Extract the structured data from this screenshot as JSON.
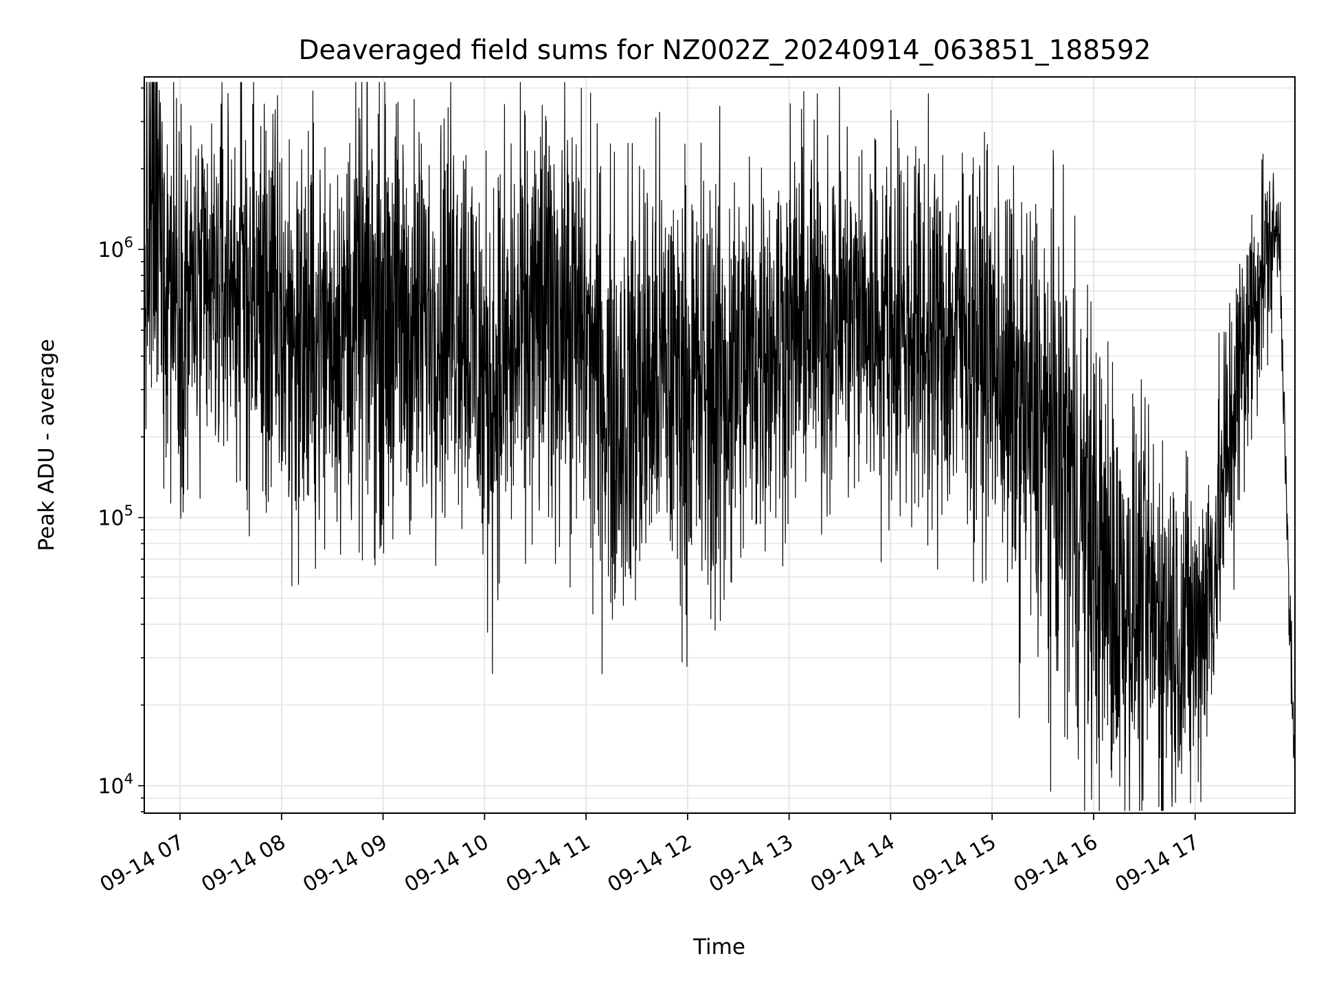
{
  "chart_data": {
    "type": "line",
    "title": "Deaveraged field sums for NZ002Z_20240914_063851_188592",
    "xlabel": "Time",
    "ylabel": "Peak ADU - average",
    "y_scale": "log",
    "ylim": [
      7900,
      4400000
    ],
    "xlim": [
      "2024-09-14 06:38:51",
      "2024-09-14 17:59:00"
    ],
    "x_ticks": [
      "2024-09-14 07:00",
      "2024-09-14 08:00",
      "2024-09-14 09:00",
      "2024-09-14 10:00",
      "2024-09-14 11:00",
      "2024-09-14 12:00",
      "2024-09-14 13:00",
      "2024-09-14 14:00",
      "2024-09-14 15:00",
      "2024-09-14 16:00",
      "2024-09-14 17:00"
    ],
    "x_tick_labels": [
      "09-14 07",
      "09-14 08",
      "09-14 09",
      "09-14 10",
      "09-14 11",
      "09-14 12",
      "09-14 13",
      "09-14 14",
      "09-14 15",
      "09-14 16",
      "09-14 17"
    ],
    "y_ticks": [
      10000,
      100000,
      1000000
    ],
    "y_tick_labels": [
      {
        "base": "10",
        "exp": "4"
      },
      {
        "base": "10",
        "exp": "5"
      },
      {
        "base": "10",
        "exp": "6"
      }
    ],
    "grid": true,
    "line_color": "#000000",
    "grid_color": "#e6e6e6",
    "series": [
      {
        "x": [
          "2024-09-14 06:38:51",
          "2024-09-14 06:45",
          "2024-09-14 06:52",
          "2024-09-14 07:00",
          "2024-09-14 07:15",
          "2024-09-14 07:30",
          "2024-09-14 07:45",
          "2024-09-14 08:00",
          "2024-09-14 08:15",
          "2024-09-14 08:30",
          "2024-09-14 08:45",
          "2024-09-14 09:00",
          "2024-09-14 09:15",
          "2024-09-14 09:30",
          "2024-09-14 09:45",
          "2024-09-14 10:00",
          "2024-09-14 10:15",
          "2024-09-14 10:30",
          "2024-09-14 10:45",
          "2024-09-14 11:00",
          "2024-09-14 11:15",
          "2024-09-14 11:30",
          "2024-09-14 11:45",
          "2024-09-14 12:00",
          "2024-09-14 12:15",
          "2024-09-14 12:30",
          "2024-09-14 12:45",
          "2024-09-14 13:00",
          "2024-09-14 13:15",
          "2024-09-14 13:30",
          "2024-09-14 13:45",
          "2024-09-14 14:00",
          "2024-09-14 14:15",
          "2024-09-14 14:30",
          "2024-09-14 14:45",
          "2024-09-14 15:00",
          "2024-09-14 15:15",
          "2024-09-14 15:30",
          "2024-09-14 15:45",
          "2024-09-14 16:00",
          "2024-09-14 16:15",
          "2024-09-14 16:30",
          "2024-09-14 16:45",
          "2024-09-14 17:00",
          "2024-09-14 17:10",
          "2024-09-14 17:20",
          "2024-09-14 17:30",
          "2024-09-14 17:40",
          "2024-09-14 17:50",
          "2024-09-14 17:55",
          "2024-09-14 17:59"
        ],
        "y": [
          800000,
          1500000,
          900000,
          700000,
          600000,
          800000,
          650000,
          500000,
          450000,
          500000,
          550000,
          600000,
          500000,
          550000,
          700000,
          300000,
          400000,
          550000,
          600000,
          450000,
          250000,
          300000,
          350000,
          300000,
          300000,
          350000,
          450000,
          500000,
          550000,
          600000,
          550000,
          550000,
          500000,
          450000,
          500000,
          400000,
          250000,
          200000,
          150000,
          70000,
          50000,
          45000,
          40000,
          35000,
          60000,
          200000,
          450000,
          900000,
          1200000,
          60000,
          10000
        ],
        "amplitude_dex": [
          0.35,
          0.5,
          0.4,
          0.35,
          0.35,
          0.35,
          0.4,
          0.4,
          0.4,
          0.35,
          0.4,
          0.4,
          0.4,
          0.35,
          0.4,
          0.4,
          0.4,
          0.4,
          0.4,
          0.4,
          0.4,
          0.45,
          0.4,
          0.4,
          0.45,
          0.4,
          0.35,
          0.35,
          0.35,
          0.35,
          0.35,
          0.35,
          0.35,
          0.35,
          0.35,
          0.35,
          0.4,
          0.45,
          0.45,
          0.45,
          0.4,
          0.35,
          0.35,
          0.3,
          0.3,
          0.3,
          0.25,
          0.2,
          0.1,
          0.1,
          0.1
        ],
        "samples": 4000
      }
    ]
  }
}
